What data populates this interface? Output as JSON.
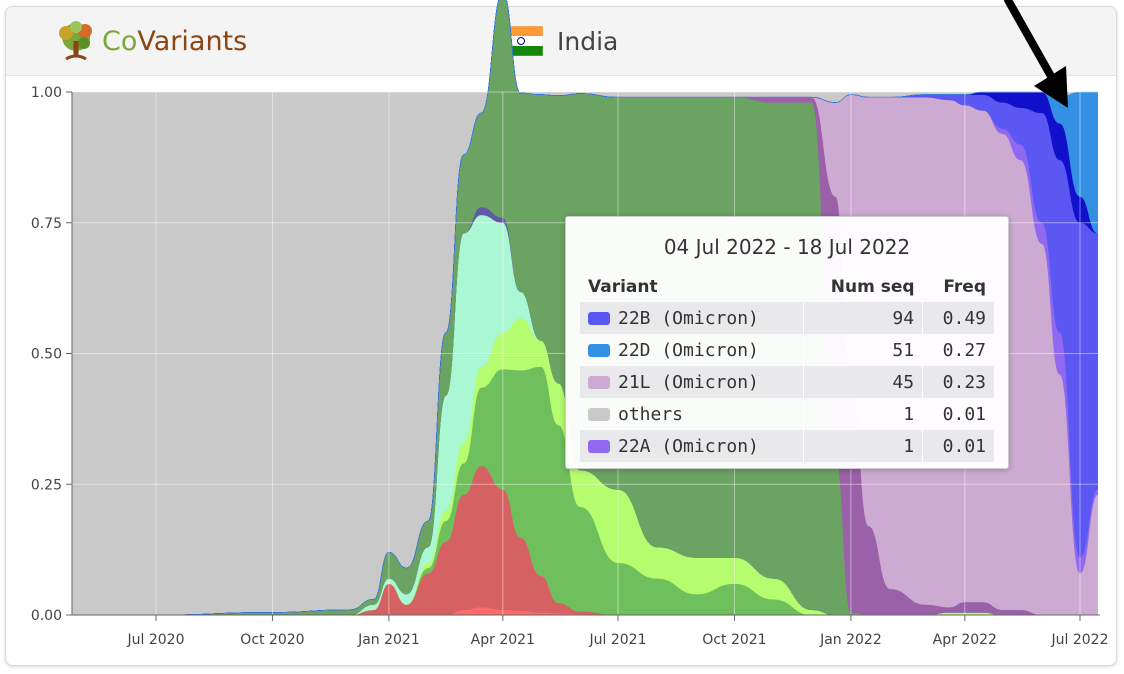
{
  "header": {
    "logo_text_co": "Co",
    "logo_text_variants": "Variants",
    "country": "India"
  },
  "tooltip": {
    "title": "04 Jul 2022 - 18 Jul 2022",
    "columns": [
      "Variant",
      "Num seq",
      "Freq"
    ],
    "rows": [
      {
        "variant": "22B (Omicron)",
        "num_seq": "94",
        "freq": "0.49",
        "color": "#5a57f2"
      },
      {
        "variant": "22D (Omicron)",
        "num_seq": "51",
        "freq": "0.27",
        "color": "#3390e2"
      },
      {
        "variant": "21L (Omicron)",
        "num_seq": "45",
        "freq": "0.23",
        "color": "#cdaad2"
      },
      {
        "variant": "others",
        "num_seq": "1",
        "freq": "0.01",
        "color": "#c9c9c9"
      },
      {
        "variant": "22A (Omicron)",
        "num_seq": "1",
        "freq": "0.01",
        "color": "#9168f0"
      }
    ]
  },
  "colors": {
    "others": "#c9c9c9",
    "alpha_b1617": "#6ba363",
    "delta": "#6fbf5d",
    "kappa": "#b5fd6f",
    "a23": "#a9f7d3",
    "b1351": "#d66162",
    "b1351b": "#ff6b6b",
    "omicron_21L": "#cdaad2",
    "omicron_21K": "#9a60a8",
    "omicron_22A": "#9168f0",
    "omicron_22B": "#5a57f2",
    "omicron_22C": "#1111cc",
    "omicron_22D": "#3390e2",
    "small_purple": "#5f5aa5"
  },
  "chart_data": {
    "type": "area",
    "stacked": true,
    "normalized": true,
    "x_ticks": [
      "Jul 2020",
      "Oct 2020",
      "Jan 2021",
      "Apr 2021",
      "Jul 2021",
      "Oct 2021",
      "Jan 2022",
      "Apr 2022",
      "Jul 2022"
    ],
    "y_ticks": [
      "0.00",
      "0.25",
      "0.50",
      "0.75",
      "1.00"
    ],
    "ylim": [
      0,
      1
    ],
    "x": [
      "2020-04-15",
      "2020-07-01",
      "2020-10-01",
      "2020-12-01",
      "2020-12-20",
      "2021-01-01",
      "2021-01-15",
      "2021-02-01",
      "2021-02-15",
      "2021-03-01",
      "2021-03-15",
      "2021-04-01",
      "2021-04-15",
      "2021-05-01",
      "2021-05-15",
      "2021-06-01",
      "2021-07-01",
      "2021-08-01",
      "2021-09-01",
      "2021-10-01",
      "2021-11-01",
      "2021-12-01",
      "2021-12-20",
      "2022-01-01",
      "2022-01-15",
      "2022-02-01",
      "2022-03-01",
      "2022-03-20",
      "2022-04-01",
      "2022-04-15",
      "2022-05-01",
      "2022-05-15",
      "2022-06-01",
      "2022-06-15",
      "2022-07-01",
      "2022-07-15"
    ],
    "series": [
      {
        "key": "b1351b",
        "values": [
          0,
          0,
          0,
          0,
          0,
          0,
          0,
          0,
          0,
          0.01,
          0.015,
          0.01,
          0.008,
          0.005,
          0.003,
          0.002,
          0,
          0,
          0,
          0,
          0,
          0,
          0,
          0,
          0,
          0,
          0,
          0,
          0,
          0,
          0,
          0,
          0,
          0,
          0,
          0
        ]
      },
      {
        "key": "b1351",
        "values": [
          0,
          0,
          0,
          0,
          0.01,
          0.06,
          0.02,
          0.08,
          0.14,
          0.22,
          0.27,
          0.23,
          0.14,
          0.07,
          0.02,
          0.005,
          0,
          0,
          0,
          0,
          0,
          0,
          0,
          0,
          0,
          0,
          0,
          0,
          0,
          0,
          0,
          0,
          0,
          0,
          0,
          0
        ]
      },
      {
        "key": "delta",
        "values": [
          0,
          0,
          0,
          0,
          0,
          0,
          0,
          0.01,
          0.04,
          0.06,
          0.15,
          0.23,
          0.32,
          0.4,
          0.34,
          0.2,
          0.1,
          0.07,
          0.04,
          0.06,
          0.03,
          0,
          0,
          0,
          0,
          0,
          0,
          0,
          0,
          0,
          0,
          0,
          0,
          0,
          0,
          0
        ]
      },
      {
        "key": "kappa",
        "values": [
          0,
          0,
          0,
          0,
          0,
          0,
          0,
          0.01,
          0.02,
          0.04,
          0.04,
          0.07,
          0.1,
          0.05,
          0.08,
          0.07,
          0.14,
          0.06,
          0.07,
          0.05,
          0.04,
          0.01,
          0,
          0,
          0,
          0,
          0,
          0.005,
          0.005,
          0.005,
          0,
          0,
          0,
          0,
          0,
          0
        ]
      },
      {
        "key": "a23",
        "values": [
          0,
          0,
          0,
          0,
          0.01,
          0.01,
          0.02,
          0.03,
          0.22,
          0.4,
          0.29,
          0.21,
          0.05,
          0,
          0,
          0,
          0,
          0,
          0,
          0,
          0,
          0,
          0,
          0,
          0,
          0,
          0,
          0,
          0,
          0,
          0,
          0,
          0,
          0,
          0,
          0
        ]
      },
      {
        "key": "small_purple",
        "values": [
          0,
          0,
          0,
          0,
          0,
          0,
          0,
          0,
          0,
          0,
          0.015,
          0.01,
          0,
          0,
          0,
          0,
          0,
          0,
          0,
          0,
          0,
          0,
          0,
          0,
          0,
          0,
          0,
          0,
          0,
          0,
          0,
          0,
          0,
          0,
          0,
          0
        ]
      },
      {
        "key": "alpha_b1617",
        "values": [
          0,
          0,
          0.005,
          0.01,
          0.01,
          0.05,
          0.05,
          0.05,
          0.12,
          0.15,
          0.18,
          0.43,
          0.38,
          0.47,
          0.55,
          0.72,
          0.75,
          0.86,
          0.88,
          0.88,
          0.91,
          0.97,
          0.3,
          0.005,
          0,
          0,
          0,
          0,
          0,
          0,
          0,
          0,
          0,
          0,
          0,
          0
        ]
      },
      {
        "key": "omicron_21K",
        "values": [
          0,
          0,
          0,
          0,
          0,
          0,
          0,
          0,
          0,
          0,
          0,
          0,
          0,
          0,
          0,
          0,
          0,
          0,
          0,
          0,
          0.01,
          0.01,
          0.5,
          0.45,
          0.17,
          0.05,
          0.02,
          0.01,
          0.02,
          0.02,
          0.01,
          0.01,
          0,
          0,
          0,
          0
        ]
      },
      {
        "key": "omicron_21L",
        "values": [
          0,
          0,
          0,
          0,
          0,
          0,
          0,
          0,
          0,
          0,
          0,
          0,
          0,
          0,
          0,
          0,
          0,
          0,
          0,
          0,
          0,
          0,
          0.18,
          0.54,
          0.82,
          0.94,
          0.97,
          0.97,
          0.95,
          0.94,
          0.91,
          0.86,
          0.71,
          0.46,
          0.08,
          0.23
        ]
      },
      {
        "key": "omicron_22A",
        "values": [
          0,
          0,
          0,
          0,
          0,
          0,
          0,
          0,
          0,
          0,
          0,
          0,
          0,
          0,
          0,
          0,
          0,
          0,
          0,
          0,
          0,
          0,
          0,
          0,
          0,
          0,
          0,
          0,
          0,
          0,
          0.01,
          0.03,
          0.04,
          0.08,
          0.03,
          0.01
        ]
      },
      {
        "key": "omicron_22B",
        "values": [
          0,
          0,
          0,
          0,
          0,
          0,
          0,
          0,
          0,
          0,
          0,
          0,
          0,
          0,
          0,
          0,
          0,
          0,
          0,
          0,
          0,
          0,
          0,
          0,
          0,
          0,
          0.005,
          0.01,
          0.02,
          0.03,
          0.05,
          0.07,
          0.21,
          0.33,
          0.64,
          0.49
        ]
      },
      {
        "key": "omicron_22C",
        "values": [
          0,
          0,
          0,
          0,
          0,
          0,
          0,
          0,
          0,
          0,
          0,
          0,
          0,
          0,
          0,
          0,
          0,
          0,
          0,
          0,
          0,
          0,
          0,
          0,
          0,
          0,
          0,
          0,
          0,
          0.005,
          0.02,
          0.03,
          0.04,
          0.07,
          0.05,
          0
        ]
      },
      {
        "key": "omicron_22D",
        "values": [
          0,
          0,
          0,
          0,
          0,
          0,
          0,
          0,
          0,
          0,
          0,
          0,
          0,
          0,
          0,
          0,
          0,
          0,
          0,
          0,
          0,
          0,
          0,
          0,
          0,
          0,
          0,
          0,
          0,
          0,
          0,
          0,
          0,
          0.05,
          0.2,
          0.27
        ]
      }
    ],
    "others_key": "others"
  }
}
